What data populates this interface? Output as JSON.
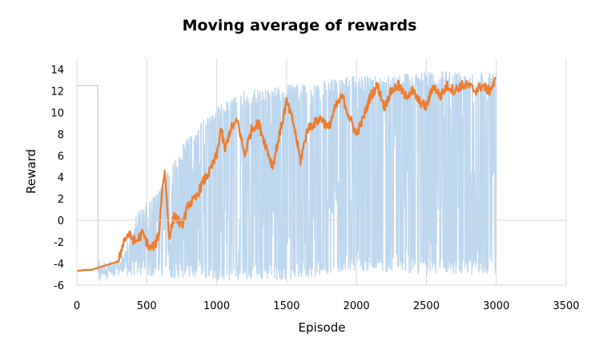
{
  "chart_data": {
    "type": "line",
    "title": "Moving average of rewards",
    "xlabel": "Episode",
    "ylabel": "Reward",
    "xlim": [
      0,
      3500
    ],
    "ylim": [
      -6,
      15
    ],
    "xticks": [
      0,
      500,
      1000,
      1500,
      2000,
      2500,
      3000,
      3500
    ],
    "yticks": [
      -6,
      -4,
      -2,
      0,
      2,
      4,
      6,
      8,
      10,
      12,
      14
    ],
    "grid": "vertical",
    "legend": "none",
    "colors": {
      "raw": "#BDD7EE",
      "moving_average": "#ED7D31",
      "axis": "#D9D9D9"
    },
    "series": [
      {
        "role": "raw",
        "x": [
          0,
          150,
          150,
          320,
          420,
          600,
          650,
          800,
          1000,
          1200,
          1500,
          1800,
          1950,
          2200,
          2500,
          2800,
          3000
        ],
        "upper": [
          12.5,
          12.5,
          -4.3,
          -3.5,
          0.5,
          3.0,
          4.5,
          8.0,
          10.5,
          12.0,
          12.5,
          13.0,
          13.3,
          13.5,
          13.8,
          13.8,
          13.8
        ],
        "lower": [
          12.5,
          12.5,
          -5.2,
          -5.2,
          -5.2,
          -5.2,
          -5.3,
          -5.3,
          -5.5,
          -5.5,
          -5.5,
          -5.0,
          -4.6,
          -4.8,
          -5.0,
          -5.0,
          -5.0
        ]
      },
      {
        "role": "moving_average",
        "x": [
          0,
          50,
          100,
          150,
          200,
          250,
          300,
          330,
          370,
          420,
          470,
          520,
          560,
          590,
          610,
          630,
          660,
          700,
          750,
          800,
          850,
          900,
          950,
          1000,
          1030,
          1060,
          1100,
          1150,
          1200,
          1250,
          1300,
          1350,
          1400,
          1450,
          1500,
          1550,
          1600,
          1650,
          1700,
          1750,
          1800,
          1850,
          1900,
          1950,
          2000,
          2050,
          2100,
          2150,
          2200,
          2250,
          2300,
          2350,
          2400,
          2450,
          2500,
          2550,
          2600,
          2650,
          2700,
          2750,
          2800,
          2850,
          2900,
          2950,
          3000
        ],
        "values": [
          -4.7,
          -4.6,
          -4.6,
          -4.4,
          -4.2,
          -4.0,
          -3.8,
          -2.0,
          -1.3,
          -2.0,
          -1.2,
          -2.6,
          -2.3,
          -1.0,
          3.0,
          4.5,
          -1.5,
          0.5,
          -0.5,
          1.5,
          2.0,
          3.5,
          4.5,
          6.0,
          8.5,
          6.5,
          8.5,
          9.2,
          6.0,
          8.5,
          9.0,
          7.0,
          5.0,
          8.0,
          11.0,
          9.0,
          5.5,
          8.5,
          9.0,
          9.5,
          8.5,
          10.5,
          11.5,
          9.5,
          8.0,
          9.5,
          11.5,
          12.5,
          10.5,
          12.0,
          12.5,
          11.5,
          12.0,
          11.0,
          10.5,
          12.5,
          11.5,
          12.5,
          12.0,
          12.5,
          12.5,
          12.0,
          12.5,
          12.0,
          13.0
        ]
      }
    ]
  }
}
